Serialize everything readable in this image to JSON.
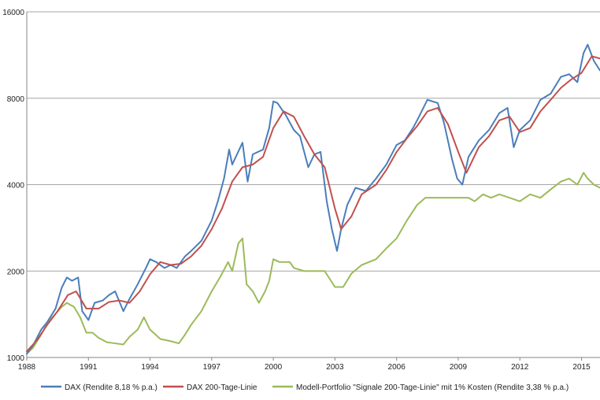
{
  "chart_data": {
    "type": "line",
    "y_scale": "log",
    "ylim": [
      1000,
      16000
    ],
    "xlim": [
      1988,
      2015.9
    ],
    "y_ticks": [
      1000,
      2000,
      4000,
      8000,
      16000
    ],
    "y_tick_labels": [
      "1000",
      "2000",
      "4000",
      "8000",
      "16000"
    ],
    "x_ticks": [
      1988,
      1991,
      1994,
      1997,
      2000,
      2003,
      2006,
      2009,
      2012,
      2015
    ],
    "x_tick_labels": [
      "1988",
      "1991",
      "1994",
      "1997",
      "2000",
      "2003",
      "2006",
      "2009",
      "2012",
      "2015"
    ],
    "grid": "horizontal",
    "legend_position": "bottom",
    "series": [
      {
        "name": "DAX (Rendite 8,18 % p.a.)",
        "color": "#4a7ebb",
        "points": [
          [
            1988.0,
            1030
          ],
          [
            1988.3,
            1100
          ],
          [
            1988.7,
            1250
          ],
          [
            1989.0,
            1330
          ],
          [
            1989.4,
            1480
          ],
          [
            1989.7,
            1750
          ],
          [
            1989.95,
            1900
          ],
          [
            1990.2,
            1850
          ],
          [
            1990.5,
            1900
          ],
          [
            1990.7,
            1450
          ],
          [
            1991.0,
            1350
          ],
          [
            1991.3,
            1550
          ],
          [
            1991.7,
            1580
          ],
          [
            1992.0,
            1650
          ],
          [
            1992.3,
            1700
          ],
          [
            1992.7,
            1450
          ],
          [
            1993.0,
            1600
          ],
          [
            1993.4,
            1800
          ],
          [
            1993.8,
            2050
          ],
          [
            1994.0,
            2200
          ],
          [
            1994.3,
            2150
          ],
          [
            1994.7,
            2050
          ],
          [
            1995.0,
            2100
          ],
          [
            1995.3,
            2050
          ],
          [
            1995.7,
            2250
          ],
          [
            1996.0,
            2350
          ],
          [
            1996.5,
            2550
          ],
          [
            1997.0,
            3000
          ],
          [
            1997.3,
            3500
          ],
          [
            1997.6,
            4200
          ],
          [
            1997.85,
            5300
          ],
          [
            1998.0,
            4700
          ],
          [
            1998.5,
            5600
          ],
          [
            1998.75,
            4100
          ],
          [
            1999.0,
            5100
          ],
          [
            1999.5,
            5300
          ],
          [
            1999.8,
            6300
          ],
          [
            2000.0,
            7800
          ],
          [
            2000.2,
            7700
          ],
          [
            2000.6,
            7000
          ],
          [
            2001.0,
            6200
          ],
          [
            2001.3,
            5900
          ],
          [
            2001.7,
            4600
          ],
          [
            2002.0,
            5100
          ],
          [
            2002.3,
            5200
          ],
          [
            2002.6,
            3500
          ],
          [
            2002.85,
            2800
          ],
          [
            2003.1,
            2350
          ],
          [
            2003.3,
            2800
          ],
          [
            2003.6,
            3400
          ],
          [
            2004.0,
            3900
          ],
          [
            2004.5,
            3800
          ],
          [
            2005.0,
            4200
          ],
          [
            2005.5,
            4700
          ],
          [
            2006.0,
            5500
          ],
          [
            2006.4,
            5700
          ],
          [
            2006.8,
            6300
          ],
          [
            2007.0,
            6700
          ],
          [
            2007.5,
            7900
          ],
          [
            2008.0,
            7700
          ],
          [
            2008.3,
            6600
          ],
          [
            2008.7,
            4900
          ],
          [
            2008.95,
            4200
          ],
          [
            2009.2,
            4000
          ],
          [
            2009.5,
            5000
          ],
          [
            2010.0,
            5700
          ],
          [
            2010.5,
            6200
          ],
          [
            2011.0,
            7100
          ],
          [
            2011.4,
            7400
          ],
          [
            2011.7,
            5400
          ],
          [
            2012.0,
            6200
          ],
          [
            2012.5,
            6700
          ],
          [
            2013.0,
            7900
          ],
          [
            2013.5,
            8300
          ],
          [
            2014.0,
            9500
          ],
          [
            2014.4,
            9700
          ],
          [
            2014.8,
            9100
          ],
          [
            2015.1,
            11500
          ],
          [
            2015.3,
            12300
          ],
          [
            2015.6,
            10800
          ],
          [
            2015.9,
            10000
          ]
        ]
      },
      {
        "name": "DAX 200-Tage-Linie",
        "color": "#c0504d",
        "points": [
          [
            1988.0,
            1050
          ],
          [
            1988.5,
            1150
          ],
          [
            1989.0,
            1300
          ],
          [
            1989.5,
            1450
          ],
          [
            1990.0,
            1650
          ],
          [
            1990.4,
            1700
          ],
          [
            1990.9,
            1480
          ],
          [
            1991.5,
            1480
          ],
          [
            1992.0,
            1560
          ],
          [
            1992.5,
            1580
          ],
          [
            1993.0,
            1550
          ],
          [
            1993.5,
            1700
          ],
          [
            1994.0,
            1950
          ],
          [
            1994.5,
            2150
          ],
          [
            1995.0,
            2100
          ],
          [
            1995.5,
            2120
          ],
          [
            1996.0,
            2250
          ],
          [
            1996.5,
            2450
          ],
          [
            1997.0,
            2800
          ],
          [
            1997.5,
            3300
          ],
          [
            1998.0,
            4100
          ],
          [
            1998.5,
            4600
          ],
          [
            1999.0,
            4700
          ],
          [
            1999.5,
            5000
          ],
          [
            2000.0,
            6300
          ],
          [
            2000.5,
            7200
          ],
          [
            2001.0,
            6900
          ],
          [
            2001.5,
            5900
          ],
          [
            2002.0,
            5100
          ],
          [
            2002.5,
            4600
          ],
          [
            2003.0,
            3300
          ],
          [
            2003.3,
            2800
          ],
          [
            2003.8,
            3100
          ],
          [
            2004.3,
            3700
          ],
          [
            2005.0,
            4000
          ],
          [
            2005.5,
            4500
          ],
          [
            2006.0,
            5200
          ],
          [
            2006.5,
            5800
          ],
          [
            2007.0,
            6400
          ],
          [
            2007.5,
            7200
          ],
          [
            2008.0,
            7400
          ],
          [
            2008.5,
            6500
          ],
          [
            2009.0,
            5200
          ],
          [
            2009.4,
            4400
          ],
          [
            2010.0,
            5400
          ],
          [
            2010.5,
            5900
          ],
          [
            2011.0,
            6700
          ],
          [
            2011.5,
            6900
          ],
          [
            2012.0,
            6100
          ],
          [
            2012.5,
            6300
          ],
          [
            2013.0,
            7200
          ],
          [
            2013.5,
            7900
          ],
          [
            2014.0,
            8700
          ],
          [
            2014.5,
            9300
          ],
          [
            2015.0,
            9800
          ],
          [
            2015.5,
            11200
          ],
          [
            2015.9,
            11000
          ]
        ]
      },
      {
        "name": "Modell-Portfolio \"Signale 200-Tage-Linie\" mit 1% Kosten (Rendite 3,38 % p.a.)",
        "color": "#9bbb59",
        "points": [
          [
            1988.0,
            1030
          ],
          [
            1988.3,
            1080
          ],
          [
            1988.7,
            1200
          ],
          [
            1989.0,
            1320
          ],
          [
            1989.4,
            1420
          ],
          [
            1989.7,
            1500
          ],
          [
            1989.95,
            1550
          ],
          [
            1990.3,
            1500
          ],
          [
            1990.6,
            1380
          ],
          [
            1990.9,
            1220
          ],
          [
            1991.2,
            1220
          ],
          [
            1991.5,
            1170
          ],
          [
            1991.9,
            1130
          ],
          [
            1992.3,
            1120
          ],
          [
            1992.7,
            1110
          ],
          [
            1993.0,
            1180
          ],
          [
            1993.4,
            1250
          ],
          [
            1993.7,
            1380
          ],
          [
            1994.0,
            1250
          ],
          [
            1994.5,
            1160
          ],
          [
            1995.0,
            1140
          ],
          [
            1995.4,
            1120
          ],
          [
            1995.7,
            1200
          ],
          [
            1996.0,
            1300
          ],
          [
            1996.5,
            1450
          ],
          [
            1997.0,
            1700
          ],
          [
            1997.4,
            1900
          ],
          [
            1997.8,
            2150
          ],
          [
            1998.0,
            2000
          ],
          [
            1998.3,
            2500
          ],
          [
            1998.5,
            2600
          ],
          [
            1998.7,
            1800
          ],
          [
            1999.0,
            1700
          ],
          [
            1999.3,
            1550
          ],
          [
            1999.6,
            1700
          ],
          [
            1999.8,
            1850
          ],
          [
            2000.0,
            2200
          ],
          [
            2000.3,
            2150
          ],
          [
            2000.8,
            2150
          ],
          [
            2001.0,
            2050
          ],
          [
            2001.5,
            2000
          ],
          [
            2002.0,
            2000
          ],
          [
            2002.5,
            2000
          ],
          [
            2003.0,
            1760
          ],
          [
            2003.4,
            1760
          ],
          [
            2003.8,
            1960
          ],
          [
            2004.3,
            2100
          ],
          [
            2005.0,
            2200
          ],
          [
            2005.5,
            2400
          ],
          [
            2006.0,
            2600
          ],
          [
            2006.5,
            3000
          ],
          [
            2007.0,
            3400
          ],
          [
            2007.4,
            3600
          ],
          [
            2008.0,
            3600
          ],
          [
            2008.5,
            3600
          ],
          [
            2009.0,
            3600
          ],
          [
            2009.5,
            3600
          ],
          [
            2009.8,
            3500
          ],
          [
            2010.2,
            3700
          ],
          [
            2010.6,
            3600
          ],
          [
            2011.0,
            3700
          ],
          [
            2011.5,
            3600
          ],
          [
            2012.0,
            3500
          ],
          [
            2012.5,
            3700
          ],
          [
            2013.0,
            3600
          ],
          [
            2013.5,
            3850
          ],
          [
            2014.0,
            4100
          ],
          [
            2014.4,
            4200
          ],
          [
            2014.8,
            4000
          ],
          [
            2015.1,
            4400
          ],
          [
            2015.3,
            4200
          ],
          [
            2015.6,
            4000
          ],
          [
            2015.9,
            3900
          ]
        ]
      }
    ]
  }
}
